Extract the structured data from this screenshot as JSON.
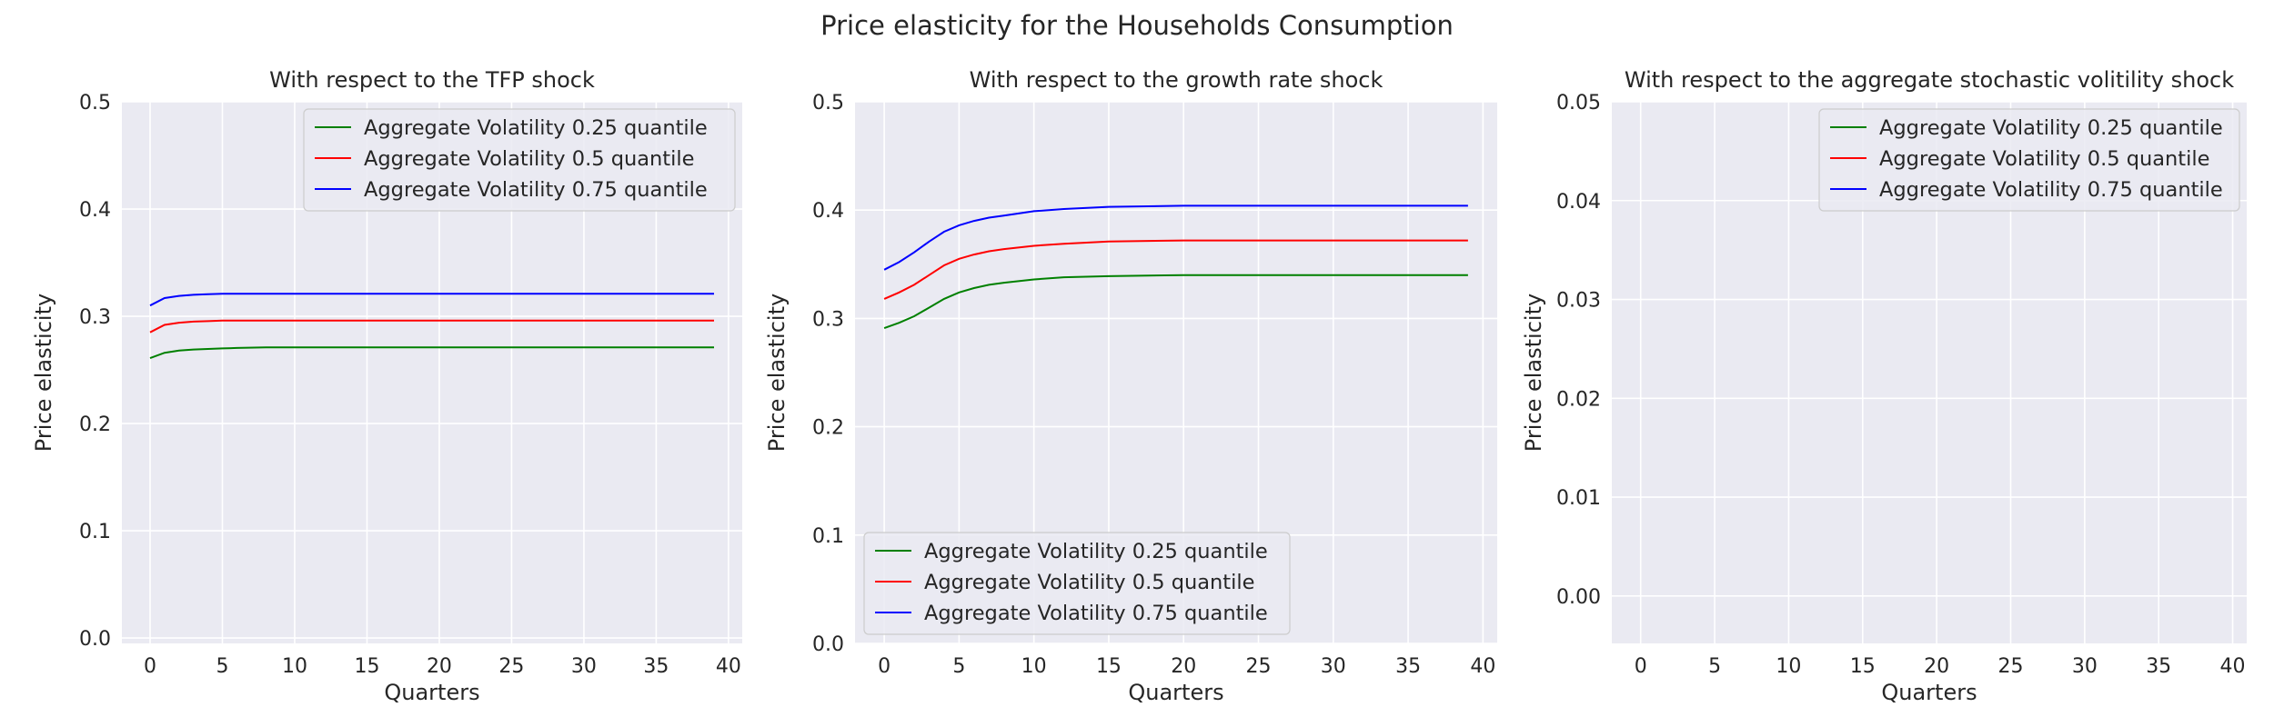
{
  "figure": {
    "suptitle": "Price elasticity for the Households Consumption",
    "colors": {
      "panel_bg": "#eaeaf2",
      "grid": "#ffffff",
      "series": [
        "#008000",
        "#ff0000",
        "#0000ff"
      ]
    }
  },
  "chart_data": [
    {
      "type": "line",
      "title": "With respect to the TFP shock",
      "xlabel": "Quarters",
      "ylabel": "Price elasticity",
      "xlim": [
        -1.95,
        40.95
      ],
      "ylim": [
        -0.005,
        0.5
      ],
      "xticks": [
        0,
        5,
        10,
        15,
        20,
        25,
        30,
        35,
        40
      ],
      "yticks": [
        0.0,
        0.1,
        0.2,
        0.3,
        0.4,
        0.5
      ],
      "ytick_labels": [
        "0.0",
        "0.1",
        "0.2",
        "0.3",
        "0.4",
        "0.5"
      ],
      "grid": true,
      "legend": "top-right",
      "series": [
        {
          "name": "Aggregate Volatility 0.25 quantile",
          "color": "#008000",
          "x": [
            0,
            1,
            2,
            3,
            4,
            5,
            6,
            8,
            10,
            15,
            20,
            25,
            30,
            35,
            39
          ],
          "y": [
            0.261,
            0.266,
            0.268,
            0.269,
            0.2695,
            0.27,
            0.2705,
            0.271,
            0.271,
            0.271,
            0.271,
            0.271,
            0.271,
            0.271,
            0.271
          ]
        },
        {
          "name": "Aggregate Volatility 0.5 quantile",
          "color": "#ff0000",
          "x": [
            0,
            1,
            2,
            3,
            4,
            5,
            6,
            8,
            10,
            15,
            20,
            25,
            30,
            35,
            39
          ],
          "y": [
            0.285,
            0.292,
            0.294,
            0.295,
            0.2955,
            0.296,
            0.296,
            0.296,
            0.296,
            0.296,
            0.296,
            0.296,
            0.296,
            0.296,
            0.296
          ]
        },
        {
          "name": "Aggregate Volatility 0.75 quantile",
          "color": "#0000ff",
          "x": [
            0,
            1,
            2,
            3,
            4,
            5,
            6,
            8,
            10,
            15,
            20,
            25,
            30,
            35,
            39
          ],
          "y": [
            0.31,
            0.317,
            0.319,
            0.32,
            0.3205,
            0.321,
            0.321,
            0.321,
            0.321,
            0.321,
            0.321,
            0.321,
            0.321,
            0.321,
            0.321
          ]
        }
      ]
    },
    {
      "type": "line",
      "title": "With respect to the growth rate shock",
      "xlabel": "Quarters",
      "ylabel": "Price elasticity",
      "xlim": [
        -1.95,
        40.95
      ],
      "ylim": [
        0.0,
        0.5
      ],
      "xticks": [
        0,
        5,
        10,
        15,
        20,
        25,
        30,
        35,
        40
      ],
      "yticks": [
        0.0,
        0.1,
        0.2,
        0.3,
        0.4,
        0.5
      ],
      "ytick_labels": [
        "0.0",
        "0.1",
        "0.2",
        "0.3",
        "0.4",
        "0.5"
      ],
      "grid": true,
      "legend": "bottom-left",
      "series": [
        {
          "name": "Aggregate Volatility 0.25 quantile",
          "color": "#008000",
          "x": [
            0,
            1,
            2,
            3,
            4,
            5,
            6,
            7,
            8,
            10,
            12,
            15,
            20,
            25,
            30,
            35,
            39
          ],
          "y": [
            0.291,
            0.296,
            0.302,
            0.31,
            0.318,
            0.324,
            0.328,
            0.331,
            0.333,
            0.336,
            0.338,
            0.339,
            0.34,
            0.34,
            0.34,
            0.34,
            0.34
          ]
        },
        {
          "name": "Aggregate Volatility 0.5 quantile",
          "color": "#ff0000",
          "x": [
            0,
            1,
            2,
            3,
            4,
            5,
            6,
            7,
            8,
            10,
            12,
            15,
            20,
            25,
            30,
            35,
            39
          ],
          "y": [
            0.318,
            0.324,
            0.331,
            0.34,
            0.349,
            0.355,
            0.359,
            0.362,
            0.364,
            0.367,
            0.369,
            0.371,
            0.372,
            0.372,
            0.372,
            0.372,
            0.372
          ]
        },
        {
          "name": "Aggregate Volatility 0.75 quantile",
          "color": "#0000ff",
          "x": [
            0,
            1,
            2,
            3,
            4,
            5,
            6,
            7,
            8,
            10,
            12,
            15,
            20,
            25,
            30,
            35,
            39
          ],
          "y": [
            0.345,
            0.352,
            0.361,
            0.371,
            0.38,
            0.386,
            0.39,
            0.393,
            0.395,
            0.399,
            0.401,
            0.403,
            0.404,
            0.404,
            0.404,
            0.404,
            0.404
          ]
        }
      ]
    },
    {
      "type": "line",
      "title": "With respect to the aggregate stochastic volitility shock",
      "xlabel": "Quarters",
      "ylabel": "Price elasticity",
      "xlim": [
        -1.95,
        40.95
      ],
      "ylim": [
        -0.0048,
        0.05
      ],
      "xticks": [
        0,
        5,
        10,
        15,
        20,
        25,
        30,
        35,
        40
      ],
      "yticks": [
        0.0,
        0.01,
        0.02,
        0.03,
        0.04,
        0.05
      ],
      "ytick_labels": [
        "0.00",
        "0.01",
        "0.02",
        "0.03",
        "0.04",
        "0.05"
      ],
      "grid": true,
      "legend": "top-right",
      "series": [
        {
          "name": "Aggregate Volatility 0.25 quantile",
          "color": "#008000",
          "x": [],
          "y": []
        },
        {
          "name": "Aggregate Volatility 0.5 quantile",
          "color": "#ff0000",
          "x": [],
          "y": []
        },
        {
          "name": "Aggregate Volatility 0.75 quantile",
          "color": "#0000ff",
          "x": [],
          "y": []
        }
      ]
    }
  ]
}
